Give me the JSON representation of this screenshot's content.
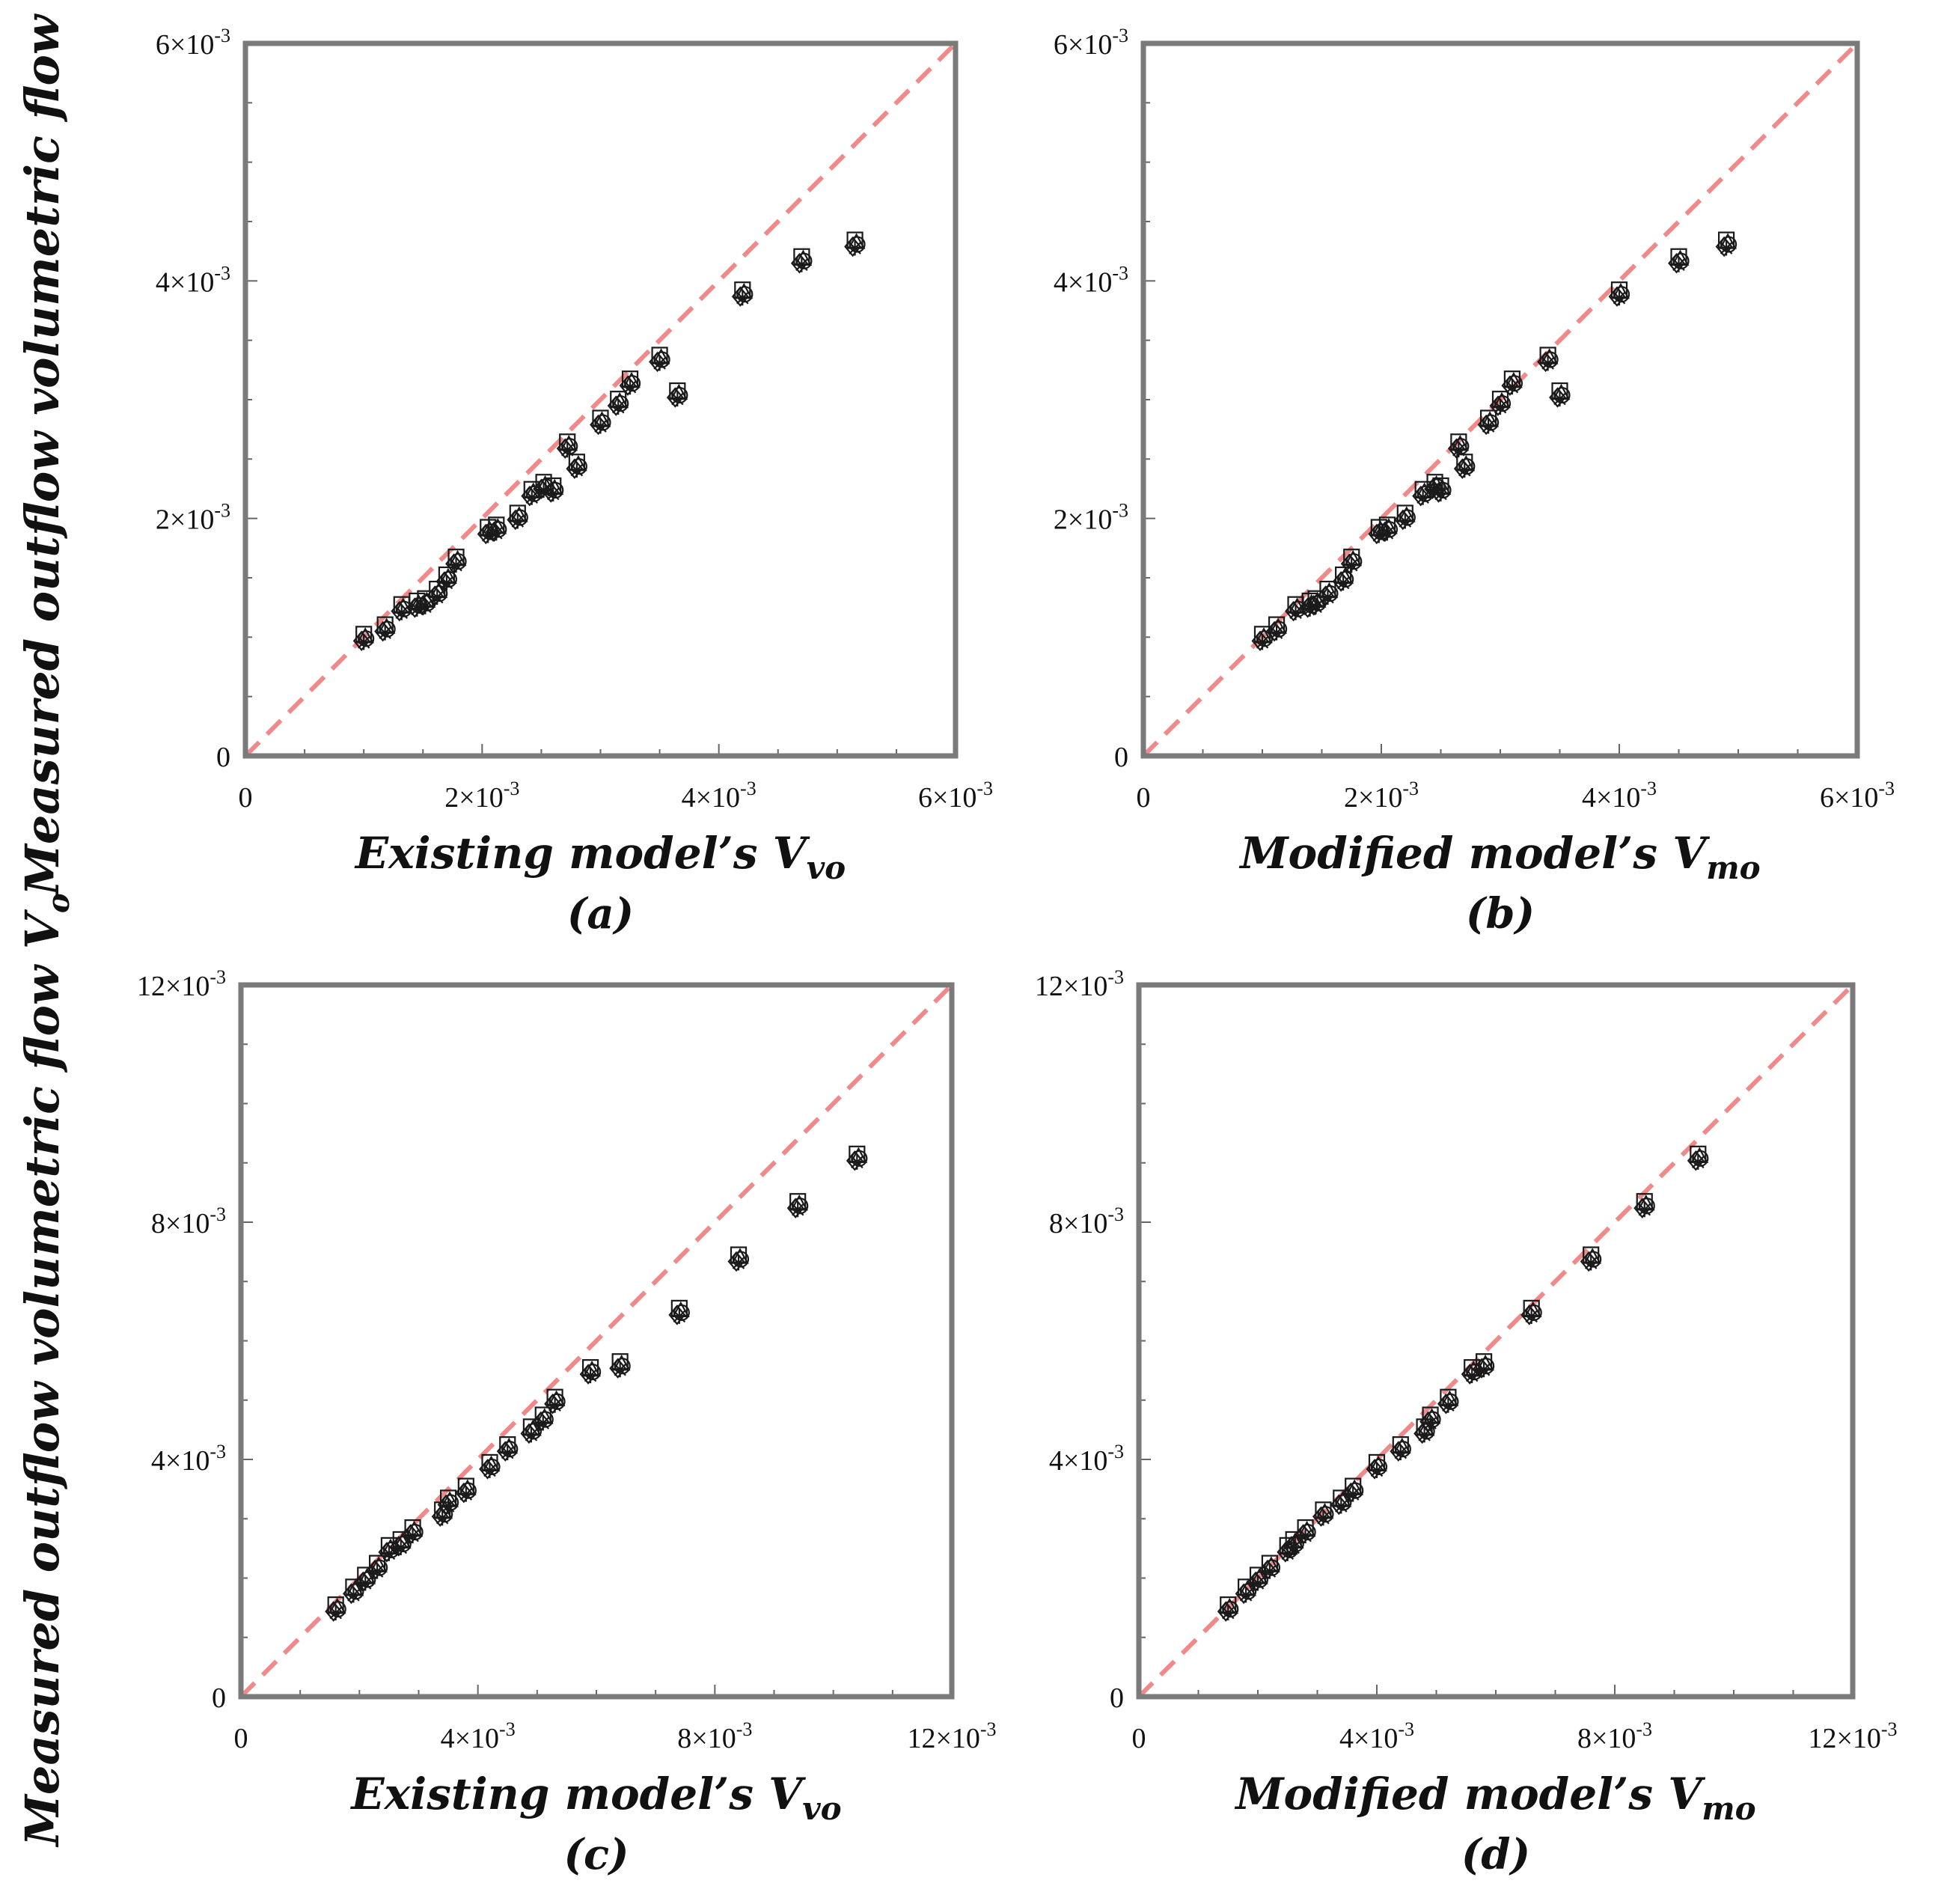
{
  "figure": {
    "ylabel_main": "Measured outflow volumetric flow ",
    "ylabel_symbol": "V",
    "ylabel_sub": "o"
  },
  "panels": [
    {
      "panel_label": "(a)",
      "xlabel_main": "Existing model’s ",
      "xlabel_symbol": "V",
      "xlabel_sub": "vo",
      "ticks": {
        "x": [
          {
            "label": "0"
          },
          {
            "label": "2×10",
            "exp": "-3"
          },
          {
            "label": "4×10",
            "exp": "-3"
          },
          {
            "label": "6×10",
            "exp": "-3"
          }
        ],
        "y": [
          {
            "label": "0"
          },
          {
            "label": "2×10",
            "exp": "-3"
          },
          {
            "label": "4×10",
            "exp": "-3"
          },
          {
            "label": "6×10",
            "exp": "-3"
          }
        ]
      }
    },
    {
      "panel_label": "(b)",
      "xlabel_main": "Modified model’s ",
      "xlabel_symbol": "V",
      "xlabel_sub": "mo",
      "ticks": {
        "x": [
          {
            "label": "0"
          },
          {
            "label": "2×10",
            "exp": "-3"
          },
          {
            "label": "4×10",
            "exp": "-3"
          },
          {
            "label": "6×10",
            "exp": "-3"
          }
        ],
        "y": [
          {
            "label": "0"
          },
          {
            "label": "2×10",
            "exp": "-3"
          },
          {
            "label": "4×10",
            "exp": "-3"
          },
          {
            "label": "6×10",
            "exp": "-3"
          }
        ]
      }
    },
    {
      "panel_label": "(c)",
      "xlabel_main": "Existing model’s ",
      "xlabel_symbol": "V",
      "xlabel_sub": "vo",
      "ticks": {
        "x": [
          {
            "label": "0"
          },
          {
            "label": "4×10",
            "exp": "-3"
          },
          {
            "label": "8×10",
            "exp": "-3"
          },
          {
            "label": "12×10",
            "exp": "-3"
          }
        ],
        "y": [
          {
            "label": "0"
          },
          {
            "label": "4×10",
            "exp": "-3"
          },
          {
            "label": "8×10",
            "exp": "-3"
          },
          {
            "label": "12×10",
            "exp": "-3"
          }
        ]
      }
    },
    {
      "panel_label": "(d)",
      "xlabel_main": "Modified model’s ",
      "xlabel_symbol": "V",
      "xlabel_sub": "mo",
      "ticks": {
        "x": [
          {
            "label": "0"
          },
          {
            "label": "4×10",
            "exp": "-3"
          },
          {
            "label": "8×10",
            "exp": "-3"
          },
          {
            "label": "12×10",
            "exp": "-3"
          }
        ],
        "y": [
          {
            "label": "0"
          },
          {
            "label": "4×10",
            "exp": "-3"
          },
          {
            "label": "8×10",
            "exp": "-3"
          },
          {
            "label": "12×10",
            "exp": "-3"
          }
        ]
      }
    }
  ],
  "chart_data": [
    {
      "type": "scatter",
      "title": "(a)",
      "xlabel": "Existing model’s V̇vo",
      "ylabel": "Measured outflow volumetric flow V̇o",
      "xlim": [
        0,
        0.006
      ],
      "ylim": [
        0,
        0.006
      ],
      "reference_line": "y = x (dashed)",
      "marker_types": [
        "square",
        "circle",
        "diamond",
        "triangle",
        "star"
      ],
      "x": [
        0.001,
        0.00118,
        0.00132,
        0.00145,
        0.00152,
        0.00162,
        0.0017,
        0.00178,
        0.00205,
        0.00212,
        0.0023,
        0.00242,
        0.00252,
        0.0026,
        0.00272,
        0.0028,
        0.003,
        0.00315,
        0.00325,
        0.0035,
        0.00365,
        0.0042,
        0.0047,
        0.00515
      ],
      "y": [
        0.001,
        0.00108,
        0.00125,
        0.00128,
        0.0013,
        0.00138,
        0.0015,
        0.00165,
        0.0019,
        0.00192,
        0.00202,
        0.00222,
        0.00228,
        0.00225,
        0.00262,
        0.00245,
        0.00282,
        0.00298,
        0.00315,
        0.00335,
        0.00305,
        0.0039,
        0.00418,
        0.00432
      ]
    },
    {
      "type": "scatter",
      "title": "(b)",
      "xlabel": "Modified model’s V̇mo",
      "ylabel": "Measured outflow volumetric flow V̇o",
      "xlim": [
        0,
        0.006
      ],
      "ylim": [
        0,
        0.006
      ],
      "reference_line": "y = x (dashed)",
      "marker_types": [
        "square",
        "circle",
        "diamond",
        "triangle",
        "star"
      ],
      "x": [
        0.001,
        0.00112,
        0.00128,
        0.0014,
        0.00145,
        0.00155,
        0.00168,
        0.00175,
        0.00198,
        0.00205,
        0.0022,
        0.00235,
        0.00245,
        0.0025,
        0.00265,
        0.0027,
        0.0029,
        0.003,
        0.0031,
        0.0034,
        0.0035,
        0.004,
        0.0045,
        0.0049
      ],
      "y": [
        0.001,
        0.00108,
        0.00125,
        0.00128,
        0.0013,
        0.00138,
        0.0015,
        0.00165,
        0.0019,
        0.00192,
        0.00202,
        0.00222,
        0.00228,
        0.00225,
        0.00262,
        0.00245,
        0.00282,
        0.00298,
        0.00315,
        0.00335,
        0.00305,
        0.0039,
        0.00418,
        0.00432
      ]
    },
    {
      "type": "scatter",
      "title": "(c)",
      "xlabel": "Existing model’s V̇vo",
      "ylabel": "Measured outflow volumetric flow V̇o",
      "xlim": [
        0,
        0.012
      ],
      "ylim": [
        0,
        0.012
      ],
      "reference_line": "y = x (dashed)",
      "marker_types": [
        "square",
        "circle",
        "diamond",
        "triangle",
        "star"
      ],
      "x": [
        0.0016,
        0.0019,
        0.0021,
        0.0023,
        0.0025,
        0.0027,
        0.0029,
        0.0034,
        0.0035,
        0.0038,
        0.0042,
        0.0045,
        0.0049,
        0.0051,
        0.0053,
        0.0059,
        0.0064,
        0.0074,
        0.0084,
        0.0094,
        0.0104
      ],
      "y": [
        0.0015,
        0.0018,
        0.002,
        0.0022,
        0.0025,
        0.0026,
        0.0028,
        0.0031,
        0.0033,
        0.0035,
        0.0039,
        0.0042,
        0.0045,
        0.0047,
        0.005,
        0.0055,
        0.0056,
        0.0065,
        0.0074,
        0.0083,
        0.0091
      ]
    },
    {
      "type": "scatter",
      "title": "(d)",
      "xlabel": "Modified model’s V̇mo",
      "ylabel": "Measured outflow volumetric flow V̇o",
      "xlim": [
        0,
        0.012
      ],
      "ylim": [
        0,
        0.012
      ],
      "reference_line": "y = x (dashed)",
      "marker_types": [
        "square",
        "circle",
        "diamond",
        "triangle",
        "star"
      ],
      "x": [
        0.0015,
        0.0018,
        0.002,
        0.0022,
        0.0025,
        0.0026,
        0.0028,
        0.0031,
        0.0034,
        0.0036,
        0.004,
        0.0044,
        0.0048,
        0.0049,
        0.0052,
        0.0056,
        0.0058,
        0.0066,
        0.0076,
        0.0085,
        0.0094
      ],
      "y": [
        0.0015,
        0.0018,
        0.002,
        0.0022,
        0.0025,
        0.0026,
        0.0028,
        0.0031,
        0.0033,
        0.0035,
        0.0039,
        0.0042,
        0.0045,
        0.0047,
        0.005,
        0.0055,
        0.0056,
        0.0065,
        0.0074,
        0.0083,
        0.0091
      ]
    }
  ]
}
